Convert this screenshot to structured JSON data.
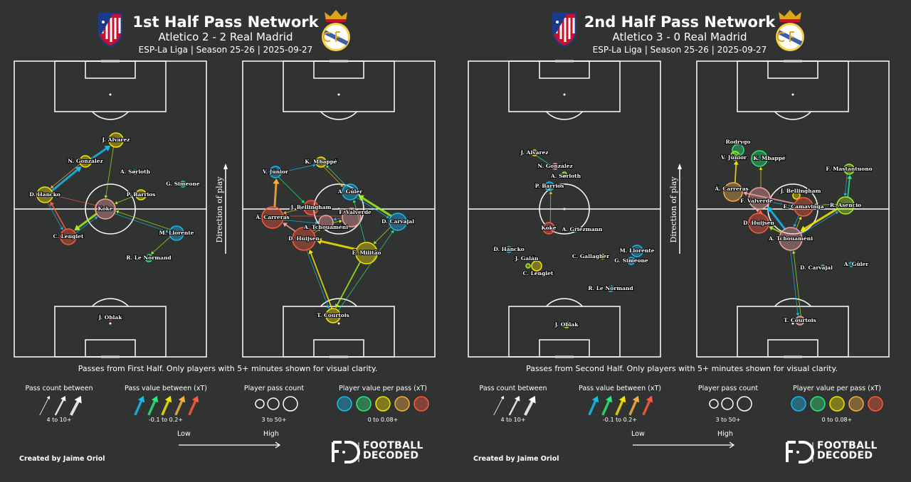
{
  "colors": {
    "C": "#19b9ee",
    "G": "#2ee87a",
    "Y": "#f5e600",
    "O": "#f5b041",
    "R": "#ff5a3c",
    "P": "#f4a3a3",
    "L": "#a3f01e",
    "background": "#313332",
    "pitch_lines": "#ffffff"
  },
  "panels": [
    {
      "title": "1st Half Pass Network",
      "subtitle": "Atletico 2 - 2 Real Madrid",
      "info": "ESP-La Liga | Season 25-26 | 2025-09-27",
      "caption": "Passes from First Half. Only players with 5+ minutes shown for visual clarity.",
      "direction_label": "Direction of play",
      "pitches": [
        {
          "team": "Atletico",
          "players": [
            {
              "name": "J. Alvarez",
              "color": "Y"
            },
            {
              "name": "N. González",
              "color": "Y"
            },
            {
              "name": "A. Sørloth",
              "color": "C"
            },
            {
              "name": "G. Simeone",
              "color": "G"
            },
            {
              "name": "D. Hancko",
              "color": "Y"
            },
            {
              "name": "P. Barrios",
              "color": "Y"
            },
            {
              "name": "Koke",
              "color": "P"
            },
            {
              "name": "C. Lenglet",
              "color": "R"
            },
            {
              "name": "M. Llorente",
              "color": "C"
            },
            {
              "name": "R. Le Normand",
              "color": "G"
            },
            {
              "name": "J. Oblak",
              "color": "R"
            }
          ],
          "passes": [
            {
              "from": "D. Hancko",
              "to": "N. González",
              "color": "C",
              "count": 3
            },
            {
              "from": "N. González",
              "to": "J. Alvarez",
              "color": "C",
              "count": 3
            },
            {
              "from": "N. González",
              "to": "D. Hancko",
              "color": "O",
              "count": 1
            },
            {
              "from": "J. Alvarez",
              "to": "Koke",
              "color": "L",
              "count": 1
            },
            {
              "from": "P. Barrios",
              "to": "Koke",
              "color": "L",
              "count": 1
            },
            {
              "from": "Koke",
              "to": "D. Hancko",
              "color": "R",
              "count": 1
            },
            {
              "from": "C. Lenglet",
              "to": "D. Hancko",
              "color": "R",
              "count": 2
            },
            {
              "from": "D. Hancko",
              "to": "C. Lenglet",
              "color": "C",
              "count": 1
            },
            {
              "from": "Koke",
              "to": "C. Lenglet",
              "color": "L",
              "count": 3
            },
            {
              "from": "C. Lenglet",
              "to": "Koke",
              "color": "C",
              "count": 1
            },
            {
              "from": "M. Llorente",
              "to": "Koke",
              "color": "L",
              "count": 1
            },
            {
              "from": "Koke",
              "to": "M. Llorente",
              "color": "C",
              "count": 1
            },
            {
              "from": "M. Llorente",
              "to": "R. Le Normand",
              "color": "L",
              "count": 1
            }
          ]
        },
        {
          "team": "Real Madrid",
          "players": [
            {
              "name": "K. Mbappé",
              "color": "Y"
            },
            {
              "name": "V. Júnior",
              "color": "C"
            },
            {
              "name": "A. Güler",
              "color": "C"
            },
            {
              "name": "J. Bellingham",
              "color": "R"
            },
            {
              "name": "Á. Carreras",
              "color": "R"
            },
            {
              "name": "F. Valverde",
              "color": "P"
            },
            {
              "name": "A. Tchouaméni",
              "color": "P"
            },
            {
              "name": "D. Carvajal",
              "color": "C"
            },
            {
              "name": "D. Huijsen",
              "color": "R"
            },
            {
              "name": "É. Militão",
              "color": "Y"
            },
            {
              "name": "T. Courtois",
              "color": "Y"
            }
          ],
          "passes": [
            {
              "from": "V. Júnior",
              "to": "K. Mbappé",
              "color": "C",
              "count": 1
            },
            {
              "from": "K. Mbappé",
              "to": "A. Güler",
              "color": "O",
              "count": 1
            },
            {
              "from": "A. Güler",
              "to": "K. Mbappé",
              "color": "G",
              "count": 1
            },
            {
              "from": "V. Júnior",
              "to": "J. Bellingham",
              "color": "G",
              "count": 1
            },
            {
              "from": "Á. Carreras",
              "to": "V. Júnior",
              "color": "O",
              "count": 3
            },
            {
              "from": "D. Carvajal",
              "to": "A. Güler",
              "color": "L",
              "count": 3
            },
            {
              "from": "A. Güler",
              "to": "D. Carvajal",
              "color": "C",
              "count": 1
            },
            {
              "from": "D. Huijsen",
              "to": "Á. Carreras",
              "color": "P",
              "count": 2
            },
            {
              "from": "J. Bellingham",
              "to": "Á. Carreras",
              "color": "O",
              "count": 1
            },
            {
              "from": "F. Valverde",
              "to": "Á. Carreras",
              "color": "R",
              "count": 1
            },
            {
              "from": "É. Militão",
              "to": "D. Huijsen",
              "color": "Y",
              "count": 3
            },
            {
              "from": "T. Courtois",
              "to": "D. Huijsen",
              "color": "Y",
              "count": 2
            },
            {
              "from": "D. Huijsen",
              "to": "T. Courtois",
              "color": "C",
              "count": 1
            },
            {
              "from": "É. Militão",
              "to": "T. Courtois",
              "color": "L",
              "count": 2
            },
            {
              "from": "T. Courtois",
              "to": "D. Carvajal",
              "color": "G",
              "count": 1
            },
            {
              "from": "D. Carvajal",
              "to": "É. Militão",
              "color": "L",
              "count": 1
            },
            {
              "from": "É. Militão",
              "to": "A. Güler",
              "color": "G",
              "count": 1
            },
            {
              "from": "A. Tchouaméni",
              "to": "F. Valverde",
              "color": "Y",
              "count": 1
            },
            {
              "from": "F. Valverde",
              "to": "A. Tchouaméni",
              "color": "C",
              "count": 1
            },
            {
              "from": "D. Huijsen",
              "to": "A. Tchouaméni",
              "color": "L",
              "count": 1
            },
            {
              "from": "A. Tchouaméni",
              "to": "D. Huijsen",
              "color": "O",
              "count": 1
            },
            {
              "from": "Á. Carreras",
              "to": "A. Tchouaméni",
              "color": "C",
              "count": 1
            }
          ]
        }
      ]
    },
    {
      "title": "2nd Half Pass Network",
      "subtitle": "Atletico 3 - 0 Real Madrid",
      "info": "ESP-La Liga | Season 25-26 | 2025-09-27",
      "caption": "Passes from Second Half. Only players with 5+ minutes shown for visual clarity.",
      "direction_label": "Direction of play",
      "pitches": [
        {
          "team": "Atletico",
          "players": [
            {
              "name": "J. Alvarez",
              "color": "Y"
            },
            {
              "name": "N. González",
              "color": "P"
            },
            {
              "name": "A. Sørloth",
              "color": "L"
            },
            {
              "name": "P. Barrios",
              "color": "C"
            },
            {
              "name": "Koke",
              "color": "R"
            },
            {
              "name": "A. Griezmann",
              "color": "C"
            },
            {
              "name": "D. Hancko",
              "color": "C"
            },
            {
              "name": "J. Galán",
              "color": "L"
            },
            {
              "name": "C. Lenglet",
              "color": "Y"
            },
            {
              "name": "C. Gallagher",
              "color": "Y"
            },
            {
              "name": "M. Llorente",
              "color": "C"
            },
            {
              "name": "G. Simeone",
              "color": "C"
            },
            {
              "name": "R. Le Normand",
              "color": "C"
            },
            {
              "name": "J. Oblak",
              "color": "L"
            }
          ],
          "passes": [
            {
              "from": "Koke",
              "to": "P. Barrios",
              "color": "O",
              "count": 1
            },
            {
              "from": "J. Alvarez",
              "to": "N. González",
              "color": "G",
              "count": 1
            }
          ]
        },
        {
          "team": "Real Madrid",
          "players": [
            {
              "name": "Rodrygo",
              "color": "G"
            },
            {
              "name": "V. Júnior",
              "color": "L"
            },
            {
              "name": "K. Mbappé",
              "color": "G"
            },
            {
              "name": "F. Mastantuono",
              "color": "L"
            },
            {
              "name": "Á. Carreras",
              "color": "O"
            },
            {
              "name": "J. Bellingham",
              "color": "Y"
            },
            {
              "name": "F. Valverde",
              "color": "P"
            },
            {
              "name": "E. Camavinga",
              "color": "R"
            },
            {
              "name": "R. Asencio",
              "color": "L"
            },
            {
              "name": "D. Huijsen",
              "color": "R"
            },
            {
              "name": "A. Tchouaméni",
              "color": "P"
            },
            {
              "name": "D. Carvajal",
              "color": "G"
            },
            {
              "name": "A. Güler",
              "color": "C"
            },
            {
              "name": "T. Courtois",
              "color": "P"
            }
          ],
          "passes": [
            {
              "from": "Á. Carreras",
              "to": "V. Júnior",
              "color": "Y",
              "count": 2
            },
            {
              "from": "F. Valverde",
              "to": "K. Mbappé",
              "color": "Y",
              "count": 1
            },
            {
              "from": "F. Mastantuono",
              "to": "R. Asencio",
              "color": "C",
              "count": 1
            },
            {
              "from": "R. Asencio",
              "to": "F. Mastantuono",
              "color": "G",
              "count": 2
            },
            {
              "from": "R. Asencio",
              "to": "A. Tchouaméni",
              "color": "Y",
              "count": 3
            },
            {
              "from": "A. Tchouaméni",
              "to": "R. Asencio",
              "color": "C",
              "count": 1
            },
            {
              "from": "E. Camavinga",
              "to": "Á. Carreras",
              "color": "P",
              "count": 2
            },
            {
              "from": "A. Tchouaméni",
              "to": "F. Valverde",
              "color": "C",
              "count": 3
            },
            {
              "from": "D. Huijsen",
              "to": "F. Valverde",
              "color": "R",
              "count": 2
            },
            {
              "from": "F. Valverde",
              "to": "D. Huijsen",
              "color": "P",
              "count": 2
            },
            {
              "from": "A. Tchouaméni",
              "to": "D. Huijsen",
              "color": "L",
              "count": 2
            },
            {
              "from": "E. Camavinga",
              "to": "A. Tchouaméni",
              "color": "C",
              "count": 1
            },
            {
              "from": "A. Tchouaméni",
              "to": "E. Camavinga",
              "color": "Y",
              "count": 1
            },
            {
              "from": "R. Asencio",
              "to": "E. Camavinga",
              "color": "L",
              "count": 1
            },
            {
              "from": "A. Tchouaméni",
              "to": "T. Courtois",
              "color": "C",
              "count": 1
            },
            {
              "from": "T. Courtois",
              "to": "A. Tchouaméni",
              "color": "L",
              "count": 1
            },
            {
              "from": "F. Valverde",
              "to": "E. Camavinga",
              "color": "C",
              "count": 1
            }
          ]
        }
      ]
    }
  ],
  "legend": {
    "pass_count_title": "Pass count between",
    "pass_count_range": "4 to 10+",
    "pass_value_title": "Pass value between (xT)",
    "pass_value_range": "-0.1 to 0.2+",
    "player_count_title": "Player pass count",
    "player_count_range": "3 to 50+",
    "player_value_title": "Player value per pass (xT)",
    "player_value_range": "0 to 0.08+",
    "low": "Low",
    "high": "High",
    "scale_colors": [
      "C",
      "G",
      "Y",
      "O",
      "R"
    ]
  },
  "credit": "Created by Jaime Oriol",
  "brand": {
    "line1": "FOOTBALL",
    "line2": "DECODED"
  }
}
